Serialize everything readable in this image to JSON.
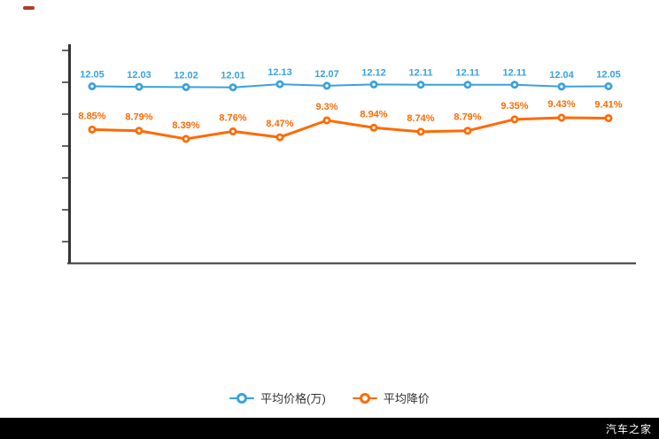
{
  "page": {
    "watermark": "汽车之家"
  },
  "chart_data": {
    "type": "line",
    "title": "",
    "x_labels": [],
    "grid": false,
    "legend_position": "bottom",
    "y_axis": {
      "tick_count": 7,
      "labels_visible": false
    },
    "series": [
      {
        "name": "平均价格(万)",
        "color": "#3aa1dd",
        "label_suffix": "",
        "values": [
          12.05,
          12.03,
          12.02,
          12.01,
          12.13,
          12.07,
          12.12,
          12.11,
          12.11,
          12.11,
          12.04,
          12.05
        ]
      },
      {
        "name": "平均降价",
        "color": "#ff6a00",
        "label_suffix": "%",
        "values": [
          8.85,
          8.79,
          8.39,
          8.76,
          8.47,
          9.3,
          8.94,
          8.74,
          8.79,
          9.35,
          9.43,
          9.41
        ]
      }
    ]
  }
}
